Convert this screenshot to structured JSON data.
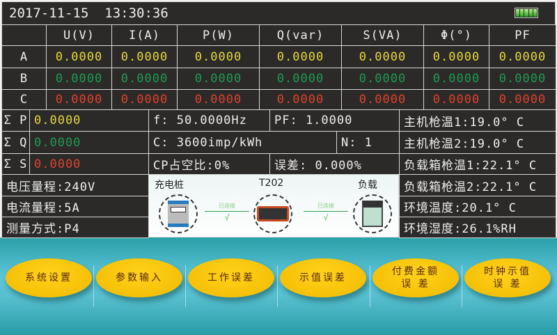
{
  "status": {
    "datetime": "2017-11-15  13:30:36",
    "battery_icon": "battery-full-icon"
  },
  "table": {
    "headers": [
      "",
      "U(V)",
      "I(A)",
      "P(W)",
      "Q(var)",
      "S(VA)",
      "Φ(°)",
      "PF"
    ],
    "rows": [
      {
        "label": "A",
        "values": [
          "0.0000",
          "0.0000",
          "0.0000",
          "0.0000",
          "0.0000",
          "0.0000",
          "0.0000"
        ]
      },
      {
        "label": "B",
        "values": [
          "0.0000",
          "0.0000",
          "0.0000",
          "0.0000",
          "0.0000",
          "0.0000",
          "0.0000"
        ]
      },
      {
        "label": "C",
        "values": [
          "0.0000",
          "0.0000",
          "0.0000",
          "0.0000",
          "0.0000",
          "0.0000",
          "0.0000"
        ]
      }
    ]
  },
  "sums": [
    {
      "label": "Σ P",
      "value": "0.0000"
    },
    {
      "label": "Σ Q",
      "value": "0.0000"
    },
    {
      "label": "Σ S",
      "value": "0.0000"
    }
  ],
  "info": {
    "freq": "f: 50.0000Hz",
    "pf": "PF: 1.0000",
    "const": "C: 3600imp/kWh",
    "n": "N: 1",
    "cp": "CP占空比:0%",
    "error": "误差: 0.000%"
  },
  "ranges": [
    "电压量程:240V",
    "电流量程:5A",
    "测量方式:P4"
  ],
  "temps": [
    "主机枪温1:19.0° C",
    "主机枪温2:19.0° C",
    "负载箱枪温1:22.1° C",
    "负载箱枪温2:22.1° C",
    "环境温度:20.1° C",
    "环境湿度:26.1%RH"
  ],
  "diagram": {
    "charger": "充电桩",
    "device": "T202",
    "load": "负载",
    "link1": "已连接",
    "link2": "已连接"
  },
  "buttons": [
    "系统设置",
    "参数输入",
    "工作误差",
    "示值误差",
    "付费金额\n误 差",
    "时钟示值\n误 差"
  ],
  "colors": {
    "phase_a": "#e8d83a",
    "phase_b": "#1f9a55",
    "phase_c": "#e0422e",
    "button": "#f5c000"
  }
}
